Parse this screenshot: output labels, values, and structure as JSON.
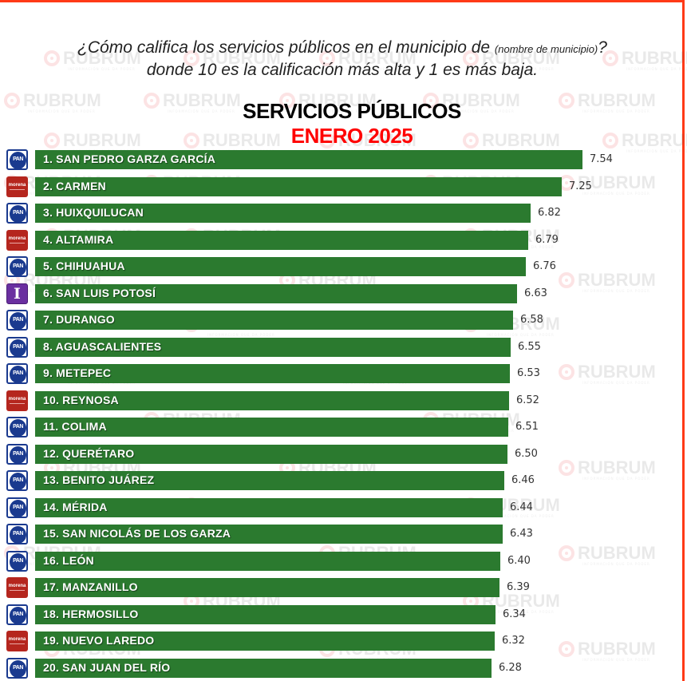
{
  "question": {
    "line1_main": "¿Cómo califica los servicios públicos en el municipio de ",
    "line1_small": "(nombre de municipio)",
    "line1_end": "?",
    "line2": "donde 10 es la calificación más alta y 1 es más baja."
  },
  "watermark": {
    "text": "RUBRUM",
    "tagline": "INFORMACIÓN QUE DA PODER"
  },
  "colors": {
    "bar": "#2b7a2f",
    "title": "#000000",
    "subtitle": "#ff0000",
    "frame": "#ff3a17",
    "pan": "#1a3a8f",
    "morena": "#b5261e",
    "independiente": "#6a2fa0"
  },
  "chart_data": {
    "type": "bar",
    "orientation": "horizontal",
    "title": "SERVICIOS PÚBLICOS",
    "subtitle": "ENERO 2025",
    "xlabel": "",
    "ylabel": "",
    "xlim": [
      0,
      7.58
    ],
    "grid": false,
    "categories": [
      "1. SAN PEDRO GARZA GARCÍA",
      "2. CARMEN",
      "3. HUIXQUILUCAN",
      "4. ALTAMIRA",
      "5. CHIHUAHUA",
      "6. SAN LUIS POTOSÍ",
      "7. DURANGO",
      "8. AGUASCALIENTES",
      "9. METEPEC",
      "10. REYNOSA",
      "11. COLIMA",
      "12. QUERÉTARO",
      "13. BENITO JUÁREZ",
      "14. MÉRIDA",
      "15. SAN NICOLÁS DE LOS GARZA",
      "16. LEÓN",
      "17. MANZANILLO",
      "18. HERMOSILLO",
      "19. NUEVO LAREDO",
      "20. SAN JUAN DEL RÍO"
    ],
    "values": [
      7.54,
      7.25,
      6.82,
      6.79,
      6.76,
      6.63,
      6.58,
      6.55,
      6.53,
      6.52,
      6.51,
      6.5,
      6.46,
      6.44,
      6.43,
      6.4,
      6.39,
      6.34,
      6.32,
      6.28
    ],
    "value_labels": [
      "7.54",
      "7.25",
      "6.82",
      "6.79",
      "6.76",
      "6.63",
      "6.58",
      "6.55",
      "6.53",
      "6.52",
      "6.51",
      "6.50",
      "6.46",
      "6.44",
      "6.43",
      "6.40",
      "6.39",
      "6.34",
      "6.32",
      "6.28"
    ],
    "party": [
      "pan",
      "morena",
      "pan",
      "morena",
      "pan",
      "independiente",
      "pan",
      "pan",
      "pan",
      "morena",
      "pan",
      "pan",
      "pan",
      "pan",
      "pan",
      "pan",
      "morena",
      "pan",
      "morena",
      "pan"
    ],
    "party_logo_text": {
      "pan": "PAN",
      "morena": "morena",
      "independiente": "I"
    }
  }
}
